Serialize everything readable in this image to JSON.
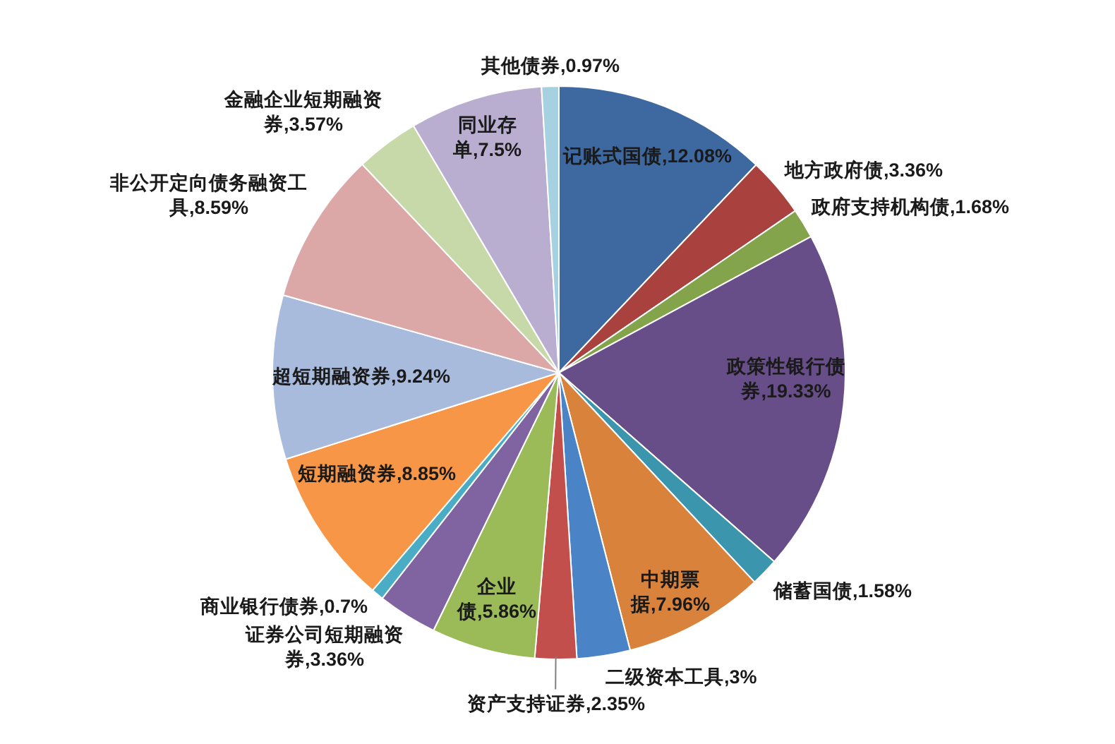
{
  "chart_data": {
    "type": "pie",
    "categories": [
      "记账式国债",
      "地方政府债",
      "政府支持机构债",
      "政策性银行债券",
      "储蓄国债",
      "中期票据",
      "二级资本工具",
      "资产支持证券",
      "企业债",
      "证券公司短期融资券",
      "商业银行债券",
      "短期融资券",
      "超短期融资券",
      "非公开定向债务融资工具",
      "金融企业短期融资券",
      "同业存单",
      "其他债券"
    ],
    "values": [
      12.08,
      3.36,
      1.68,
      19.33,
      1.58,
      7.96,
      3,
      2.35,
      5.86,
      3.36,
      0.7,
      8.85,
      9.24,
      8.59,
      3.57,
      7.5,
      0.97
    ],
    "value_labels": [
      "12.08%",
      "3.36%",
      "1.68%",
      "19.33%",
      "1.58%",
      "7.96%",
      "3%",
      "2.35%",
      "5.86%",
      "3.36%",
      "0.7%",
      "8.85%",
      "9.24%",
      "8.59%",
      "3.57%",
      "7.5%",
      "0.97%"
    ],
    "colors": [
      "#3d69a0",
      "#a9423f",
      "#84a44b",
      "#674e88",
      "#3a95ad",
      "#d9823b",
      "#4a84c6",
      "#c24f4c",
      "#9bbb59",
      "#8064a2",
      "#4bacc6",
      "#f79646",
      "#a8bbdd",
      "#dca8a7",
      "#c8d9a9",
      "#b9aecf",
      "#a6d1e0"
    ]
  }
}
